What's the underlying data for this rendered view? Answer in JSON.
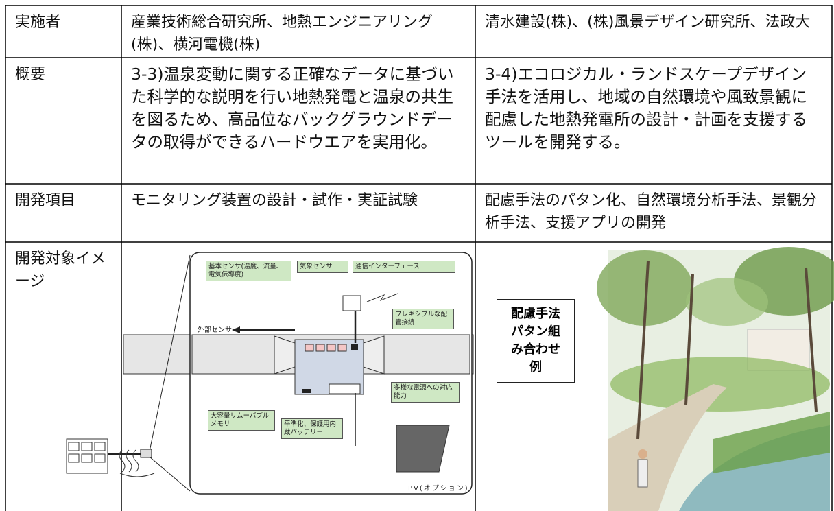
{
  "table": {
    "rows": [
      [
        "実施者",
        "産業技術総合研究所、地熱エンジニアリング(株)、横河電機(株)",
        "清水建設(株)、(株)風景デザイン研究所、法政大"
      ],
      [
        "概要",
        "3-3)温泉変動に関する正確なデータに基づいた科学的な説明を行い地熱発電と温泉の共生を図るため、高品位なバックグラウンドデータの取得ができるハードウエアを実用化。",
        "3-4)エコロジカル・ランドスケープデザイン手法を活用し、地域の自然環境や風致景観に配慮した地熱発電所の設計・計画を支援するツールを開発する。"
      ],
      [
        "開発項目",
        "モニタリング装置の設計・試作・実証試験",
        "配慮手法のパタン化、自然環境分析手法、景観分析手法、支援アプリの開発"
      ],
      [
        "開発対象イメージ"
      ]
    ]
  },
  "diagram": {
    "labels": [
      "基本センサ(温度、流量、電気伝導度)",
      "気象センサ",
      "通信インターフェース",
      "フレキシブルな配管接続",
      "外部センサ",
      "多様な電源への対応能力",
      "大容量リムーバブルメモリ",
      "平準化、保護用内蔵バッテリー",
      "PV(オプション)"
    ]
  },
  "illustration": {
    "caption": "配慮手法パタン組み合わせ例"
  }
}
